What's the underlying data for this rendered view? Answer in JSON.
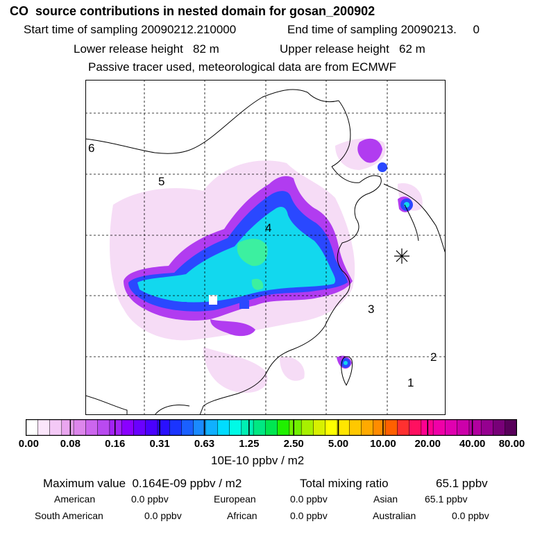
{
  "header": {
    "title": "CO  source contributions in nested domain for gosan_200902",
    "start_label": "Start time of sampling 20090212.210000",
    "end_label": "End time of sampling 20090213.     0",
    "lower_release": "Lower release height   82 m",
    "upper_release": "Upper release height   62 m",
    "tracer_note": "Passive tracer used, meteorological data are from ECMWF"
  },
  "map": {
    "region_labels": [
      "1",
      "2",
      "3",
      "4",
      "5",
      "6"
    ],
    "receptor": "gosan",
    "colors": {
      "low": "#f4d7f4",
      "mid": "#a800ff",
      "high": "#00e8d8",
      "peak": "#00e060",
      "border": "#1a1aff"
    }
  },
  "colorbar": {
    "ticks": [
      "0.00",
      "0.08",
      "0.16",
      "0.31",
      "0.63",
      "1.25",
      "2.50",
      "5.00",
      "10.00",
      "20.00",
      "40.00",
      "80.00"
    ],
    "unit": "10E-10 ppbv / m2",
    "colors": [
      "#ffffff",
      "#fbe6fb",
      "#f4c9f6",
      "#eaa6f0",
      "#dd86ec",
      "#cc66ee",
      "#b94af0",
      "#a323f6",
      "#8a00ff",
      "#6a00ff",
      "#4a00ff",
      "#2a10ff",
      "#1a34ff",
      "#1a60ff",
      "#1a8aff",
      "#10b0ff",
      "#00dcff",
      "#00fae6",
      "#00f0b4",
      "#00e882",
      "#00e650",
      "#20f000",
      "#70f000",
      "#a8f000",
      "#d8f000",
      "#ffff00",
      "#ffe600",
      "#ffc800",
      "#ffaa00",
      "#ff8c00",
      "#ff6000",
      "#ff3030",
      "#ff1060",
      "#ff0090",
      "#f000a8",
      "#e000b0",
      "#cc00aa",
      "#b200a0",
      "#960090",
      "#780078",
      "#58005a"
    ]
  },
  "stats": {
    "max_label": "Maximum value  0.164E-09 ppbv / m2",
    "total_label": "Total mixing ratio",
    "total_value": "65.1 ppbv",
    "american_label": "American",
    "american_value": "0.0 ppbv",
    "european_label": "European",
    "european_value": "0.0 ppbv",
    "asian_label": "Asian",
    "asian_value": "65.1 ppbv",
    "south_american_label": "South American",
    "south_american_value": "0.0 ppbv",
    "african_label": "African",
    "african_value": "0.0 ppbv",
    "australian_label": "Australian",
    "australian_value": "0.0 ppbv"
  }
}
